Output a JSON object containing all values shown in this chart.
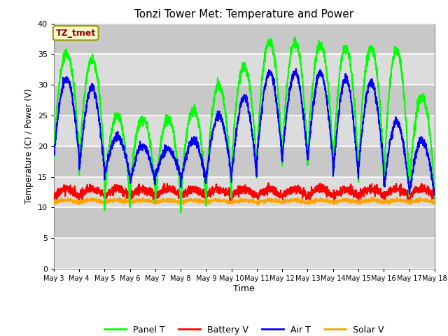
{
  "title": "Tonzi Tower Met: Temperature and Power",
  "xlabel": "Time",
  "ylabel": "Temperature (C) / Power (V)",
  "ylim": [
    0,
    40
  ],
  "yticks": [
    0,
    5,
    10,
    15,
    20,
    25,
    30,
    35,
    40
  ],
  "x_labels": [
    "May 3",
    "May 4",
    "May 5",
    "May 6",
    "May 7",
    "May 8",
    "May 9",
    "May 10",
    "May 11",
    "May 12",
    "May 13",
    "May 14",
    "May 15",
    "May 16",
    "May 17",
    "May 18"
  ],
  "annotation_text": "TZ_tmet",
  "annotation_color": "#8B0000",
  "annotation_bg": "#FFFACD",
  "colors": {
    "panel_t": "#00FF00",
    "battery_v": "#FF0000",
    "air_t": "#0000FF",
    "solar_v": "#FFA500"
  },
  "legend_labels": [
    "Panel T",
    "Battery V",
    "Air T",
    "Solar V"
  ],
  "bg_color": "#DCDCDC",
  "bg_alt_color": "#C8C8C8",
  "fig_bg": "#FFFFFF",
  "grid_color": "#FFFFFF",
  "title_fontsize": 11,
  "n_days": 15,
  "panel_peaks": [
    35,
    34,
    25,
    24.5,
    24.5,
    26,
    30,
    33,
    37,
    37,
    36.5,
    36,
    36,
    35.5,
    28
  ],
  "panel_troughs": [
    17.5,
    15,
    9.5,
    11.5,
    9.5,
    9.5,
    10,
    14.5,
    16,
    16,
    16,
    14,
    14,
    12,
    11
  ],
  "air_peaks": [
    31,
    29.5,
    21.5,
    20,
    19.5,
    21,
    25,
    28,
    32,
    32,
    32,
    31,
    30.5,
    24,
    21
  ],
  "air_troughs": [
    18.5,
    16,
    15,
    14,
    15,
    14,
    15,
    15,
    18,
    18,
    17.5,
    15,
    16,
    13,
    12
  ],
  "bat_base": 11.8,
  "sol_base": 10.8
}
